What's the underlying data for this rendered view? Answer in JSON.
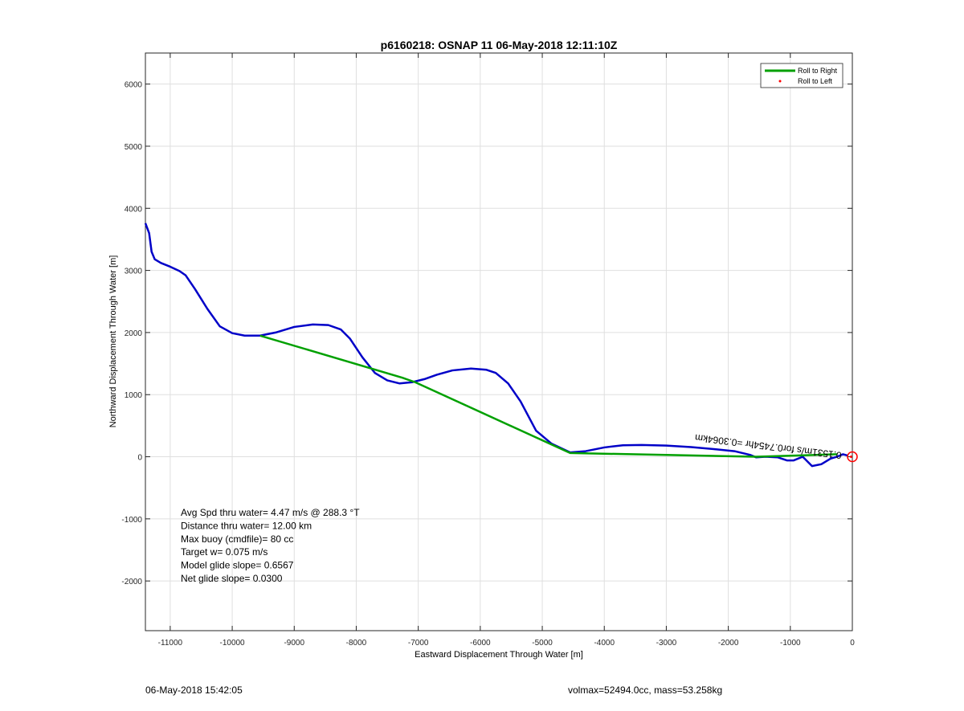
{
  "chart_data": {
    "type": "line",
    "title": "p6160218: OSNAP 11 06-May-2018 12:11:10Z",
    "xlabel": "Eastward Displacement Through Water [m]",
    "ylabel": "Northward Displacement Through Water [m]",
    "xlim": [
      -11400,
      0
    ],
    "ylim": [
      -2800,
      6500
    ],
    "xticks": [
      -11000,
      -10000,
      -9000,
      -8000,
      -7000,
      -6000,
      -5000,
      -4000,
      -3000,
      -2000,
      -1000,
      0
    ],
    "yticks": [
      -2000,
      -1000,
      0,
      1000,
      2000,
      3000,
      4000,
      5000,
      6000
    ],
    "grid": true,
    "legend_position": "top-right",
    "series": [
      {
        "name": "Roll to Right",
        "color": "#00a000",
        "style": "line",
        "x": [
          -9550,
          -7250,
          -7050,
          -4550,
          -1550,
          -250
        ],
        "y": [
          1950,
          1270,
          1200,
          60,
          0,
          40
        ]
      },
      {
        "name": "Roll to Left",
        "color": "#ff0000",
        "style": "marker",
        "x": [
          -20
        ],
        "y": [
          0
        ]
      },
      {
        "name": "",
        "color": "#0000c8",
        "style": "line",
        "x": [
          -11400,
          -11340,
          -11300,
          -11250,
          -11150,
          -11000,
          -10850,
          -10750,
          -10600,
          -10400,
          -10200,
          -10000,
          -9800,
          -9550,
          -9300,
          -9000,
          -8700,
          -8450,
          -8250,
          -8100,
          -7900,
          -7700,
          -7500,
          -7300,
          -7100,
          -6900,
          -6700,
          -6450,
          -6150,
          -5900,
          -5750,
          -5550,
          -5350,
          -5100,
          -4850,
          -4550,
          -4300,
          -4000,
          -3700,
          -3400,
          -3000,
          -2600,
          -2200,
          -1900,
          -1650,
          -1550,
          -1400,
          -1200,
          -1050,
          -950,
          -800,
          -650,
          -500,
          -350,
          -250,
          -150,
          -80
        ],
        "y": [
          3760,
          3600,
          3300,
          3180,
          3120,
          3060,
          2990,
          2920,
          2700,
          2380,
          2100,
          1990,
          1950,
          1950,
          2000,
          2090,
          2130,
          2120,
          2050,
          1900,
          1600,
          1350,
          1230,
          1180,
          1200,
          1250,
          1320,
          1390,
          1420,
          1400,
          1350,
          1180,
          890,
          420,
          210,
          70,
          90,
          150,
          185,
          190,
          180,
          155,
          120,
          90,
          30,
          -10,
          0,
          -10,
          -60,
          -60,
          0,
          -150,
          -120,
          -30,
          0,
          40,
          20
        ]
      }
    ],
    "annotations": {
      "stats_lines": [
        "Avg Spd thru water=  4.47 m/s @ 288.3 °T",
        "Distance thru water= 12.00 km",
        "Max buoy (cmdfile)= 80 cc",
        "Target w= 0.075 m/s",
        "Model glide slope= 0.6567",
        "Net glide slope= 0.0300"
      ],
      "rotated_label": "0.1531m/s for0.7454hr =0.3064km",
      "footer_left": "06-May-2018 15:42:05",
      "footer_right": "volmax=52494.0cc, mass=53.258kg"
    }
  }
}
